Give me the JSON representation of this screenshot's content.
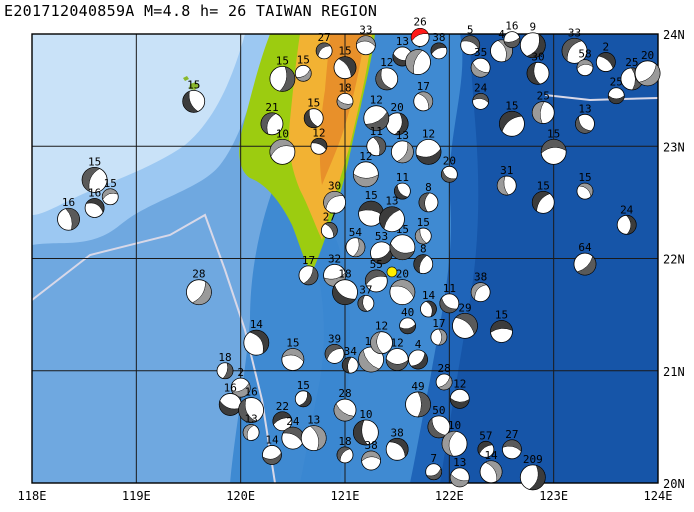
{
  "title": "E201712040859A M=4.8 h= 26 TAIWAN REGION",
  "lon_labels": [
    "118E",
    "119E",
    "120E",
    "121E",
    "122E",
    "123E",
    "124E"
  ],
  "lat_labels": [
    "24N",
    "23N",
    "22N",
    "21N",
    "20N"
  ],
  "extent": {
    "lon_min": 118,
    "lon_max": 124,
    "lat_min": 20,
    "lat_max": 24
  },
  "colors": {
    "deep": "#1f64b8",
    "mid": "#3f8ad2",
    "shelf": "#9cc8f2",
    "shallow": "#c9e2f8",
    "land_low": "#9ccc10",
    "land_mid": "#f2b233",
    "land_high": "#e8902a",
    "beach": "#888888",
    "event": "#ff1a1a",
    "marker": "#ffee00"
  },
  "event": {
    "lon": 121.72,
    "lat": 23.97,
    "depth": "26"
  },
  "marker": {
    "lon": 121.45,
    "lat": 21.88
  },
  "mechanisms": [
    {
      "lon": 120.8,
      "lat": 23.85,
      "d": "27"
    },
    {
      "lon": 121.2,
      "lat": 23.9,
      "d": "33"
    },
    {
      "lon": 121.0,
      "lat": 23.7,
      "d": "15"
    },
    {
      "lon": 120.4,
      "lat": 23.6,
      "d": "15"
    },
    {
      "lon": 120.6,
      "lat": 23.65,
      "d": "15"
    },
    {
      "lon": 121.55,
      "lat": 23.8,
      "d": "13"
    },
    {
      "lon": 121.4,
      "lat": 23.6,
      "d": "12"
    },
    {
      "lon": 121.7,
      "lat": 23.75,
      "d": "4"
    },
    {
      "lon": 121.9,
      "lat": 23.85,
      "d": "38"
    },
    {
      "lon": 122.2,
      "lat": 23.9,
      "d": "5"
    },
    {
      "lon": 122.5,
      "lat": 23.85,
      "d": "4"
    },
    {
      "lon": 122.8,
      "lat": 23.9,
      "d": "9"
    },
    {
      "lon": 122.6,
      "lat": 23.95,
      "d": "16"
    },
    {
      "lon": 122.3,
      "lat": 23.7,
      "d": "35"
    },
    {
      "lon": 122.85,
      "lat": 23.65,
      "d": "30"
    },
    {
      "lon": 123.2,
      "lat": 23.85,
      "d": "33"
    },
    {
      "lon": 123.3,
      "lat": 23.7,
      "d": "58"
    },
    {
      "lon": 123.5,
      "lat": 23.75,
      "d": "2"
    },
    {
      "lon": 123.75,
      "lat": 23.6,
      "d": "25"
    },
    {
      "lon": 123.9,
      "lat": 23.65,
      "d": "20"
    },
    {
      "lon": 123.6,
      "lat": 23.45,
      "d": "25"
    },
    {
      "lon": 123.3,
      "lat": 23.2,
      "d": "13"
    },
    {
      "lon": 122.9,
      "lat": 23.3,
      "d": "25"
    },
    {
      "lon": 122.6,
      "lat": 23.2,
      "d": "15"
    },
    {
      "lon": 122.3,
      "lat": 23.4,
      "d": "24"
    },
    {
      "lon": 121.75,
      "lat": 23.4,
      "d": "17"
    },
    {
      "lon": 121.5,
      "lat": 23.2,
      "d": "20"
    },
    {
      "lon": 121.3,
      "lat": 23.25,
      "d": "12"
    },
    {
      "lon": 121.0,
      "lat": 23.4,
      "d": "18"
    },
    {
      "lon": 120.7,
      "lat": 23.25,
      "d": "15"
    },
    {
      "lon": 120.3,
      "lat": 23.2,
      "d": "21"
    },
    {
      "lon": 120.4,
      "lat": 22.95,
      "d": "10"
    },
    {
      "lon": 120.75,
      "lat": 23.0,
      "d": "12"
    },
    {
      "lon": 121.3,
      "lat": 23.0,
      "d": "11"
    },
    {
      "lon": 121.55,
      "lat": 22.95,
      "d": "13"
    },
    {
      "lon": 121.8,
      "lat": 22.95,
      "d": "12"
    },
    {
      "lon": 122.0,
      "lat": 22.75,
      "d": "20"
    },
    {
      "lon": 122.55,
      "lat": 22.65,
      "d": "31"
    },
    {
      "lon": 122.9,
      "lat": 22.5,
      "d": "15"
    },
    {
      "lon": 123.0,
      "lat": 22.95,
      "d": "15"
    },
    {
      "lon": 123.3,
      "lat": 22.6,
      "d": "15"
    },
    {
      "lon": 123.7,
      "lat": 22.3,
      "d": "24"
    },
    {
      "lon": 123.3,
      "lat": 21.95,
      "d": "64"
    },
    {
      "lon": 121.2,
      "lat": 22.75,
      "d": "12"
    },
    {
      "lon": 121.55,
      "lat": 22.6,
      "d": "11"
    },
    {
      "lon": 121.8,
      "lat": 22.5,
      "d": "8"
    },
    {
      "lon": 120.9,
      "lat": 22.5,
      "d": "30"
    },
    {
      "lon": 121.25,
      "lat": 22.4,
      "d": "15"
    },
    {
      "lon": 120.85,
      "lat": 22.25,
      "d": "27"
    },
    {
      "lon": 121.1,
      "lat": 22.1,
      "d": "54"
    },
    {
      "lon": 121.35,
      "lat": 22.05,
      "d": "53"
    },
    {
      "lon": 121.55,
      "lat": 22.1,
      "d": "15"
    },
    {
      "lon": 121.75,
      "lat": 22.2,
      "d": "15"
    },
    {
      "lon": 121.75,
      "lat": 21.95,
      "d": "8"
    },
    {
      "lon": 121.3,
      "lat": 21.8,
      "d": "55"
    },
    {
      "lon": 121.55,
      "lat": 21.7,
      "d": "20"
    },
    {
      "lon": 121.8,
      "lat": 21.55,
      "d": "14"
    },
    {
      "lon": 120.65,
      "lat": 21.85,
      "d": "17"
    },
    {
      "lon": 120.9,
      "lat": 21.85,
      "d": "32"
    },
    {
      "lon": 121.0,
      "lat": 21.7,
      "d": "18"
    },
    {
      "lon": 121.2,
      "lat": 21.6,
      "d": "37"
    },
    {
      "lon": 122.3,
      "lat": 21.7,
      "d": "38"
    },
    {
      "lon": 122.5,
      "lat": 21.35,
      "d": "15"
    },
    {
      "lon": 122.15,
      "lat": 21.4,
      "d": "29"
    },
    {
      "lon": 121.9,
      "lat": 21.3,
      "d": "17"
    },
    {
      "lon": 121.7,
      "lat": 21.1,
      "d": "4"
    },
    {
      "lon": 121.5,
      "lat": 21.1,
      "d": "12"
    },
    {
      "lon": 121.25,
      "lat": 21.1,
      "d": "17"
    },
    {
      "lon": 121.05,
      "lat": 21.05,
      "d": "34"
    },
    {
      "lon": 120.9,
      "lat": 21.15,
      "d": "39"
    },
    {
      "lon": 120.5,
      "lat": 21.1,
      "d": "15"
    },
    {
      "lon": 120.15,
      "lat": 21.25,
      "d": "14"
    },
    {
      "lon": 119.85,
      "lat": 21.0,
      "d": "18"
    },
    {
      "lon": 120.0,
      "lat": 20.85,
      "d": "2"
    },
    {
      "lon": 119.9,
      "lat": 20.7,
      "d": "16"
    },
    {
      "lon": 120.1,
      "lat": 20.65,
      "d": "16"
    },
    {
      "lon": 120.1,
      "lat": 20.45,
      "d": "13"
    },
    {
      "lon": 120.4,
      "lat": 20.55,
      "d": "22"
    },
    {
      "lon": 120.5,
      "lat": 20.4,
      "d": "24"
    },
    {
      "lon": 120.7,
      "lat": 20.4,
      "d": "13"
    },
    {
      "lon": 120.6,
      "lat": 20.75,
      "d": "15"
    },
    {
      "lon": 120.3,
      "lat": 20.25,
      "d": "14"
    },
    {
      "lon": 121.0,
      "lat": 20.65,
      "d": "28"
    },
    {
      "lon": 121.2,
      "lat": 20.45,
      "d": "10"
    },
    {
      "lon": 121.0,
      "lat": 20.25,
      "d": "18"
    },
    {
      "lon": 121.25,
      "lat": 20.2,
      "d": "38"
    },
    {
      "lon": 121.5,
      "lat": 20.3,
      "d": "38"
    },
    {
      "lon": 121.7,
      "lat": 20.7,
      "d": "49"
    },
    {
      "lon": 121.95,
      "lat": 20.9,
      "d": "28"
    },
    {
      "lon": 122.1,
      "lat": 20.75,
      "d": "12"
    },
    {
      "lon": 121.9,
      "lat": 20.5,
      "d": "50"
    },
    {
      "lon": 122.05,
      "lat": 20.35,
      "d": "10"
    },
    {
      "lon": 122.35,
      "lat": 20.3,
      "d": "57"
    },
    {
      "lon": 122.6,
      "lat": 20.3,
      "d": "27"
    },
    {
      "lon": 122.4,
      "lat": 20.1,
      "d": "14"
    },
    {
      "lon": 122.8,
      "lat": 20.05,
      "d": "209"
    },
    {
      "lon": 121.85,
      "lat": 20.1,
      "d": "7"
    },
    {
      "lon": 122.1,
      "lat": 20.05,
      "d": "13"
    },
    {
      "lon": 119.55,
      "lat": 23.4,
      "d": "15"
    },
    {
      "lon": 118.6,
      "lat": 22.7,
      "d": "15"
    },
    {
      "lon": 118.75,
      "lat": 22.55,
      "d": "15"
    },
    {
      "lon": 118.6,
      "lat": 22.45,
      "d": "16"
    },
    {
      "lon": 118.35,
      "lat": 22.35,
      "d": "16"
    },
    {
      "lon": 119.6,
      "lat": 21.7,
      "d": "28"
    },
    {
      "lon": 121.6,
      "lat": 21.4,
      "d": "40"
    },
    {
      "lon": 122.0,
      "lat": 21.6,
      "d": "11"
    },
    {
      "lon": 121.35,
      "lat": 21.25,
      "d": "12"
    },
    {
      "lon": 121.45,
      "lat": 22.35,
      "d": "13"
    }
  ]
}
